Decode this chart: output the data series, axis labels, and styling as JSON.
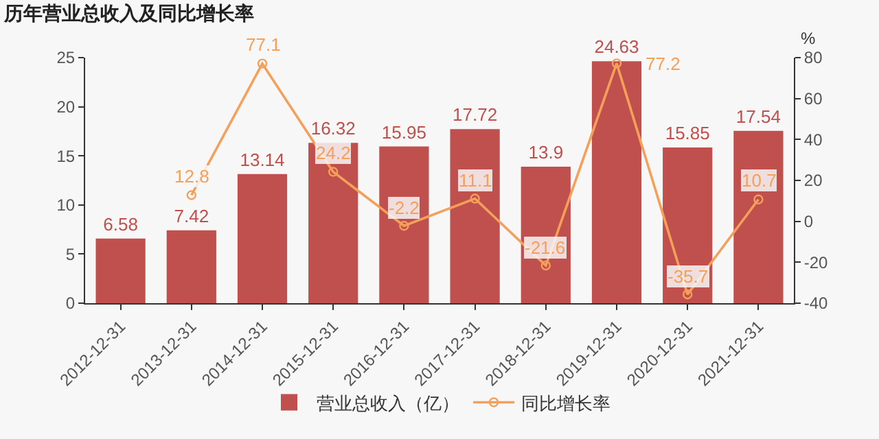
{
  "chart_data": {
    "type": "bar",
    "title": "历年营业总收入及同比增长率",
    "y2label": "%",
    "categories": [
      "2012-12-31",
      "2013-12-31",
      "2014-12-31",
      "2015-12-31",
      "2016-12-31",
      "2017-12-31",
      "2018-12-31",
      "2019-12-31",
      "2020-12-31",
      "2021-12-31"
    ],
    "series": [
      {
        "name": "营业总收入（亿）",
        "color": "#c0504d",
        "values": [
          6.58,
          7.42,
          13.14,
          16.32,
          15.95,
          17.72,
          13.9,
          24.63,
          15.85,
          17.54
        ]
      },
      {
        "name": "同比增长率",
        "type": "line",
        "axis": "y2",
        "color": "#f5a05a",
        "marker": "circle",
        "values": [
          null,
          12.8,
          77.1,
          24.2,
          -2.2,
          11.1,
          -21.6,
          77.2,
          -35.7,
          10.7
        ]
      }
    ],
    "data_labels": true,
    "ylim": [
      0,
      25
    ],
    "yticks": [
      0,
      5,
      10,
      15,
      20,
      25
    ],
    "y2lim": [
      -40,
      80
    ],
    "y2ticks": [
      -40,
      -20,
      0,
      20,
      40,
      60,
      80
    ],
    "grid": false,
    "legend": "bottom"
  }
}
